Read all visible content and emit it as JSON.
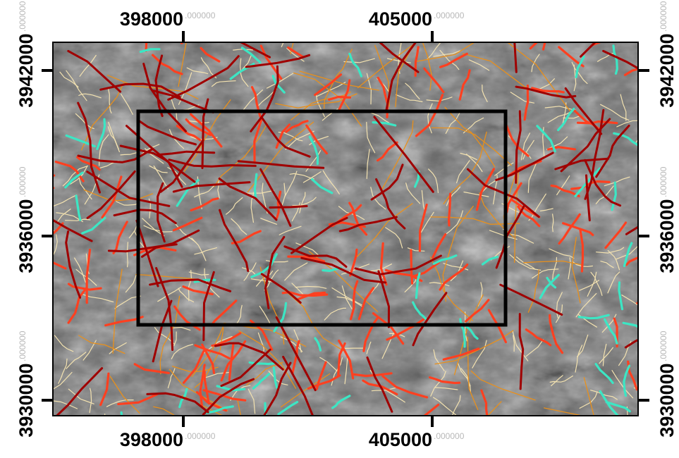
{
  "map": {
    "x_labels": [
      {
        "label": "398000",
        "decimal": ".000000"
      },
      {
        "label": "405000",
        "decimal": ".000000"
      }
    ],
    "y_labels": [
      {
        "label": "3942000",
        "decimal": ".000000"
      },
      {
        "label": "3936000",
        "decimal": ".000000"
      },
      {
        "label": "3930000",
        "decimal": ".000000"
      }
    ]
  }
}
